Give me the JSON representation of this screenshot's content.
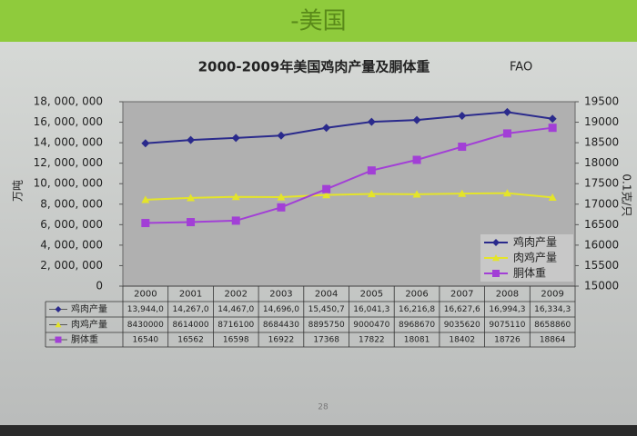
{
  "slide": {
    "title_fragment": "-美国",
    "page_number": "28"
  },
  "chart_data": {
    "type": "line",
    "title": "2000-2009年美国鸡肉产量及胴体重",
    "source": "FAO",
    "y_label": "万吨",
    "y2_label": "0.1克/只",
    "categories": [
      "2000",
      "2001",
      "2002",
      "2003",
      "2004",
      "2005",
      "2006",
      "2007",
      "2008",
      "2009"
    ],
    "series": [
      {
        "name": "鸡肉产量",
        "color": "#2a2a8c",
        "marker": "diamond",
        "values": [
          13944000,
          14267000,
          14467000,
          14696000,
          15450700,
          16041300,
          16216800,
          16627600,
          16994300,
          16334300
        ],
        "value_labels": [
          "13,944,0",
          "14,267,0",
          "14,467,0",
          "14,696,0",
          "15,450,7",
          "16,041,3",
          "16,216,8",
          "16,627,6",
          "16,994,3",
          "16,334,3"
        ]
      },
      {
        "name": "肉鸡产量",
        "color": "#e4e42a",
        "marker": "triangle",
        "values": [
          8430000,
          8614000,
          8716100,
          8684430,
          8895750,
          9000470,
          8968670,
          9035620,
          9075110,
          8658860
        ]
      },
      {
        "name": "胴体重",
        "color": "#a23fd6",
        "marker": "square",
        "axis": "y2",
        "values": [
          16540,
          16562,
          16598,
          16922,
          17368,
          17822,
          18081,
          18402,
          18726,
          18864
        ]
      }
    ],
    "ylim": [
      0,
      18000000
    ],
    "yticks": [
      0,
      {
        "value": 2000000,
        "label": "2, 000, 000"
      },
      {
        "value": 4000000,
        "label": "4, 000, 000"
      },
      {
        "value": 6000000,
        "label": "6, 000, 000"
      },
      {
        "value": 8000000,
        "label": "8, 000, 000"
      },
      {
        "value": 10000000,
        "label": "10, 000, 000"
      },
      {
        "value": 12000000,
        "label": "12, 000, 000"
      },
      {
        "value": 14000000,
        "label": "14, 000, 000"
      },
      {
        "value": 16000000,
        "label": "16, 000, 000"
      },
      {
        "value": 18000000,
        "label": "18, 000, 000"
      }
    ],
    "y2lim": [
      15000,
      19500
    ],
    "y2ticks": [
      15000,
      15500,
      16000,
      16500,
      17000,
      17500,
      18000,
      18500,
      19000,
      19500
    ],
    "grid": false,
    "legend": "lower right",
    "data_table": true
  }
}
